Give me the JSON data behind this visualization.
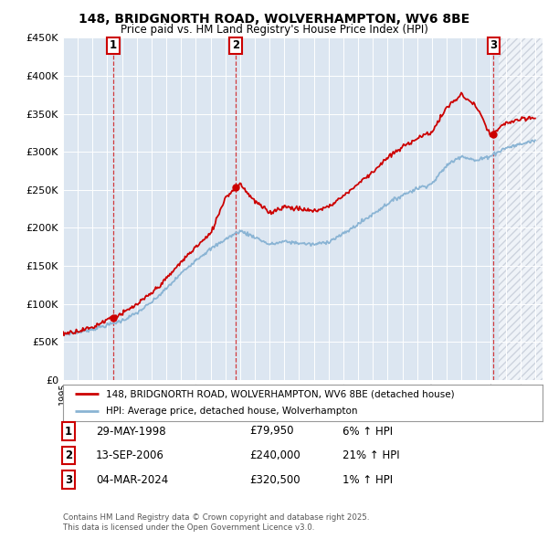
{
  "title_line1": "148, BRIDGNORTH ROAD, WOLVERHAMPTON, WV6 8BE",
  "title_line2": "Price paid vs. HM Land Registry's House Price Index (HPI)",
  "background_color": "#ffffff",
  "plot_bg_color": "#dce6f1",
  "grid_color": "#ffffff",
  "hpi_color": "#8ab4d4",
  "price_color": "#cc0000",
  "ylim": [
    0,
    450000
  ],
  "yticks": [
    0,
    50000,
    100000,
    150000,
    200000,
    250000,
    300000,
    350000,
    400000,
    450000
  ],
  "xlim_start": 1995.0,
  "xlim_end": 2027.5,
  "hatch_start": 2024.5,
  "sales": [
    {
      "num": 1,
      "date": "29-MAY-1998",
      "price": 79950,
      "pct": "6%",
      "dir": "↑",
      "x": 1998.41
    },
    {
      "num": 2,
      "date": "13-SEP-2006",
      "price": 240000,
      "pct": "21%",
      "dir": "↑",
      "x": 2006.7
    },
    {
      "num": 3,
      "date": "04-MAR-2024",
      "price": 320500,
      "pct": "1%",
      "dir": "↑",
      "x": 2024.17
    }
  ],
  "legend_line1": "148, BRIDGNORTH ROAD, WOLVERHAMPTON, WV6 8BE (detached house)",
  "legend_line2": "HPI: Average price, detached house, Wolverhampton",
  "footer_line1": "Contains HM Land Registry data © Crown copyright and database right 2025.",
  "footer_line2": "This data is licensed under the Open Government Licence v3.0."
}
